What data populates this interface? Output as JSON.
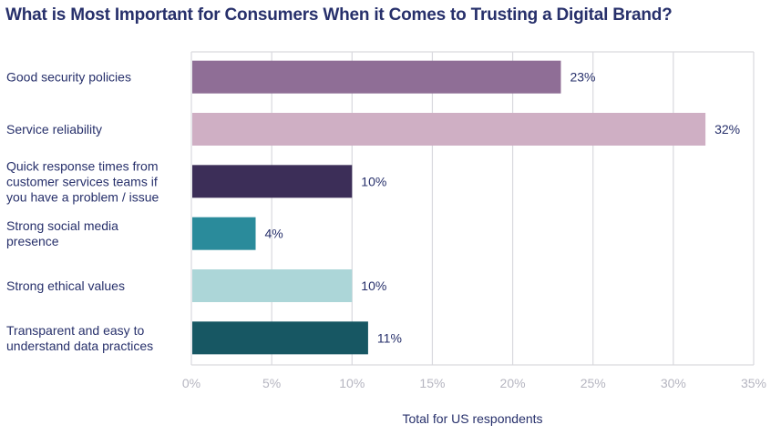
{
  "chart_data": {
    "type": "bar",
    "orientation": "horizontal",
    "title": "What is Most Important for Consumers When it Comes to Trusting a Digital Brand?",
    "xlabel": "Total for US respondents",
    "ylabel": "",
    "categories": [
      [
        "Good security policies"
      ],
      [
        "Service reliability"
      ],
      [
        "Quick response times from",
        "customer services teams if",
        "you have a problem / issue"
      ],
      [
        "Strong social media",
        "presence"
      ],
      [
        "Strong ethical values"
      ],
      [
        "Transparent and easy to",
        "understand data practices"
      ]
    ],
    "values": [
      23,
      32,
      10,
      4,
      10,
      11
    ],
    "value_labels": [
      "23%",
      "32%",
      "10%",
      "4%",
      "10%",
      "11%"
    ],
    "colors": [
      "#8f6e96",
      "#cfafc4",
      "#3c2e58",
      "#2a8b9b",
      "#acd6d8",
      "#175763"
    ],
    "xlim": [
      0,
      35
    ],
    "xticks": [
      0,
      5,
      10,
      15,
      20,
      25,
      30,
      35
    ],
    "xtick_labels": [
      "0%",
      "5%",
      "10%",
      "15%",
      "20%",
      "25%",
      "30%",
      "35%"
    ],
    "grid": true,
    "legend": "none"
  }
}
